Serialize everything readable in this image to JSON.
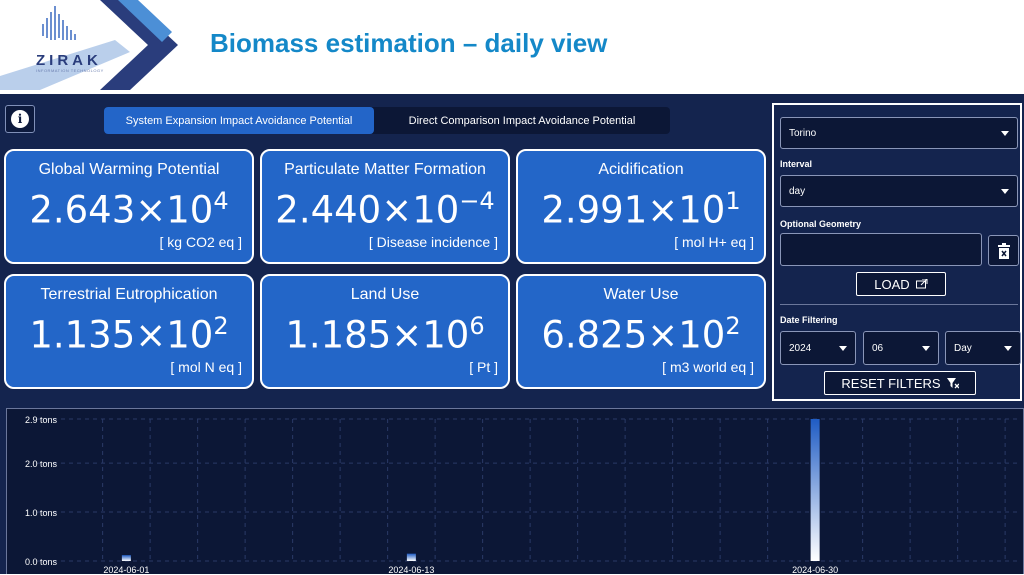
{
  "header": {
    "logo_text": "ZIRAK",
    "logo_sub": "INFORMATION TECHNOLOGY",
    "title": "Biomass estimation – daily view"
  },
  "tabs": [
    {
      "label": "System Expansion Impact Avoidance Potential",
      "active": true
    },
    {
      "label": "Direct Comparison Impact Avoidance Potential",
      "active": false
    }
  ],
  "cards": [
    {
      "title": "Global Warming Potential",
      "mantissa": "2.643×10",
      "exp": "4",
      "unit": "[ kg CO2 eq ]"
    },
    {
      "title": "Particulate Matter Formation",
      "mantissa": "2.440×10",
      "exp": "−4",
      "unit": "[ Disease incidence ]"
    },
    {
      "title": "Acidification",
      "mantissa": "2.991×10",
      "exp": "1",
      "unit": "[ mol H+ eq ]"
    },
    {
      "title": "Terrestrial Eutrophication",
      "mantissa": "1.135×10",
      "exp": "2",
      "unit": "[ mol N eq ]"
    },
    {
      "title": "Land Use",
      "mantissa": "1.185×10",
      "exp": "6",
      "unit": "[ Pt ]"
    },
    {
      "title": "Water Use",
      "mantissa": "6.825×10",
      "exp": "2",
      "unit": "[ m3 world eq ]"
    }
  ],
  "filters": {
    "location": "Torino",
    "interval_label": "Interval",
    "interval": "day",
    "geometry_label": "Optional Geometry",
    "geometry_value": "",
    "load_label": "LOAD",
    "date_filter_label": "Date Filtering",
    "year": "2024",
    "month": "06",
    "day": "Day",
    "reset_label": "RESET FILTERS"
  },
  "colors": {
    "header_title": "#1488c8",
    "dashboard_bg": "#14244e",
    "card_bg": "#2366c8",
    "bar": "#2a5fc0"
  },
  "chart_data": {
    "type": "bar",
    "ytick_labels": [
      "0.0 tons",
      "1.0 tons",
      "2.0 tons",
      "2.9 tons"
    ],
    "yticks": [
      0,
      1.0,
      2.0,
      2.9
    ],
    "ylim": [
      0,
      2.9
    ],
    "xtick_labels": [
      "2024-06-01",
      "2024-06-13",
      "2024-06-30"
    ],
    "x": [
      "2024-06-01",
      "2024-06-13",
      "2024-06-30"
    ],
    "values": [
      0.12,
      0.15,
      2.9
    ],
    "grid": true
  }
}
